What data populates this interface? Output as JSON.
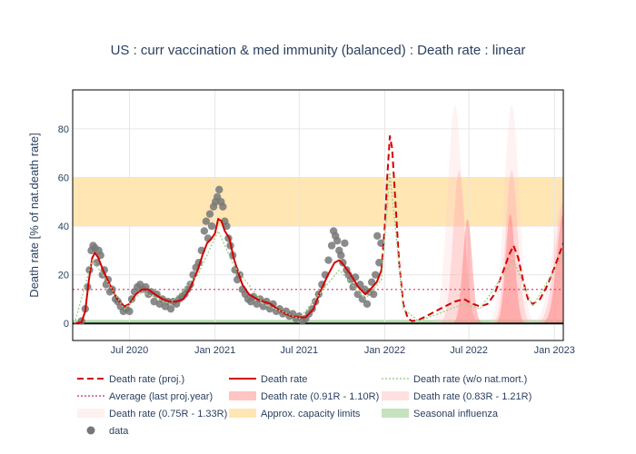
{
  "chart_data": {
    "type": "line",
    "title": "US : curr vaccination & med immunity (balanced) : Death rate : linear",
    "ylabel": "Death rate [% of nat.death rate]",
    "xlabel": "",
    "xlim": [
      "2020-03-01",
      "2023-01-20"
    ],
    "ylim": [
      -7,
      96
    ],
    "x_ticks": [
      {
        "date": "2020-07-01",
        "label": "Jul 2020"
      },
      {
        "date": "2021-01-01",
        "label": "Jan 2021"
      },
      {
        "date": "2021-07-01",
        "label": "Jul 2021"
      },
      {
        "date": "2022-01-01",
        "label": "Jan 2022"
      },
      {
        "date": "2022-07-01",
        "label": "Jul 2022"
      },
      {
        "date": "2023-01-01",
        "label": "Jan 2023"
      }
    ],
    "y_ticks": [
      0,
      20,
      40,
      60,
      80
    ],
    "grid": true,
    "legend_position": "bottom",
    "bands": [
      {
        "name": "Approx. capacity limits",
        "y0": 40,
        "y1": 60,
        "color": "#ffe6b3"
      },
      {
        "name": "Seasonal influenza",
        "y0": 0,
        "y1": 1.5,
        "color": "#b7dcb0"
      }
    ],
    "average_line": {
      "name": "Average (last proj.year)",
      "y": 14,
      "color": "#e0457b"
    },
    "series": [
      {
        "name": "Death rate",
        "color": "#d40000",
        "points": [
          [
            "2020-03-05",
            0
          ],
          [
            "2020-03-20",
            0.5
          ],
          [
            "2020-03-28",
            5
          ],
          [
            "2020-04-05",
            18
          ],
          [
            "2020-04-12",
            27
          ],
          [
            "2020-04-18",
            29
          ],
          [
            "2020-04-25",
            27
          ],
          [
            "2020-05-05",
            22
          ],
          [
            "2020-05-20",
            16
          ],
          [
            "2020-06-05",
            10
          ],
          [
            "2020-06-20",
            7
          ],
          [
            "2020-07-01",
            8
          ],
          [
            "2020-07-15",
            12
          ],
          [
            "2020-07-28",
            14
          ],
          [
            "2020-08-10",
            14
          ],
          [
            "2020-08-25",
            12
          ],
          [
            "2020-09-10",
            10
          ],
          [
            "2020-09-25",
            9
          ],
          [
            "2020-10-10",
            9
          ],
          [
            "2020-10-25",
            10
          ],
          [
            "2020-11-10",
            15
          ],
          [
            "2020-11-25",
            22
          ],
          [
            "2020-12-05",
            28
          ],
          [
            "2020-12-15",
            33
          ],
          [
            "2020-12-25",
            35
          ],
          [
            "2021-01-01",
            37
          ],
          [
            "2021-01-08",
            43
          ],
          [
            "2021-01-15",
            42
          ],
          [
            "2021-01-22",
            38
          ],
          [
            "2021-02-01",
            35
          ],
          [
            "2021-02-10",
            27
          ],
          [
            "2021-02-20",
            21
          ],
          [
            "2021-03-01",
            16
          ],
          [
            "2021-03-15",
            12
          ],
          [
            "2021-04-01",
            10
          ],
          [
            "2021-04-15",
            9
          ],
          [
            "2021-05-01",
            8
          ],
          [
            "2021-05-15",
            6
          ],
          [
            "2021-06-01",
            4
          ],
          [
            "2021-06-15",
            3
          ],
          [
            "2021-07-01",
            2.5
          ],
          [
            "2021-07-15",
            2.5
          ],
          [
            "2021-08-01",
            6
          ],
          [
            "2021-08-15",
            13
          ],
          [
            "2021-09-01",
            20
          ],
          [
            "2021-09-15",
            25
          ],
          [
            "2021-09-25",
            26
          ],
          [
            "2021-10-05",
            24
          ],
          [
            "2021-10-20",
            20
          ],
          [
            "2021-11-05",
            15
          ],
          [
            "2021-11-20",
            12
          ],
          [
            "2021-12-01",
            14
          ],
          [
            "2021-12-15",
            17
          ],
          [
            "2021-12-25",
            22
          ]
        ]
      },
      {
        "name": "Death rate (proj.)",
        "color": "#d40000",
        "dash": true,
        "points": [
          [
            "2021-12-25",
            22
          ],
          [
            "2022-01-01",
            40
          ],
          [
            "2022-01-07",
            62
          ],
          [
            "2022-01-12",
            77
          ],
          [
            "2022-01-17",
            72
          ],
          [
            "2022-01-24",
            50
          ],
          [
            "2022-02-01",
            25
          ],
          [
            "2022-02-10",
            8
          ],
          [
            "2022-02-20",
            2
          ],
          [
            "2022-03-01",
            1
          ],
          [
            "2022-03-15",
            1.5
          ],
          [
            "2022-04-01",
            3
          ],
          [
            "2022-04-20",
            5
          ],
          [
            "2022-05-10",
            7
          ],
          [
            "2022-06-01",
            9
          ],
          [
            "2022-06-20",
            10
          ],
          [
            "2022-07-10",
            8
          ],
          [
            "2022-07-25",
            7
          ],
          [
            "2022-08-10",
            8
          ],
          [
            "2022-08-25",
            12
          ],
          [
            "2022-09-10",
            20
          ],
          [
            "2022-09-25",
            28
          ],
          [
            "2022-10-05",
            32
          ],
          [
            "2022-10-15",
            27
          ],
          [
            "2022-10-25",
            18
          ],
          [
            "2022-11-05",
            10
          ],
          [
            "2022-11-15",
            8
          ],
          [
            "2022-12-01",
            10
          ],
          [
            "2022-12-15",
            15
          ],
          [
            "2023-01-01",
            23
          ],
          [
            "2023-01-20",
            33
          ]
        ]
      },
      {
        "name": "Death rate (w/o nat.mort.)",
        "color": "#9fd18b",
        "dash": true,
        "points": [
          [
            "2020-03-05",
            0
          ],
          [
            "2020-04-12",
            26
          ],
          [
            "2020-05-05",
            20
          ],
          [
            "2020-06-20",
            6
          ],
          [
            "2020-07-28",
            13
          ],
          [
            "2020-09-25",
            8
          ],
          [
            "2020-11-25",
            20
          ],
          [
            "2021-01-08",
            38
          ],
          [
            "2021-02-10",
            24
          ],
          [
            "2021-04-15",
            8
          ],
          [
            "2021-07-01",
            2
          ],
          [
            "2021-09-25",
            22
          ],
          [
            "2021-11-20",
            10
          ],
          [
            "2021-12-25",
            18
          ],
          [
            "2022-01-12",
            62
          ],
          [
            "2022-02-10",
            6
          ],
          [
            "2022-03-15",
            1
          ],
          [
            "2022-06-20",
            8
          ],
          [
            "2022-07-25",
            6
          ],
          [
            "2022-10-05",
            26
          ],
          [
            "2022-11-15",
            7
          ],
          [
            "2023-01-20",
            28
          ]
        ]
      }
    ],
    "uncertainty_bands": [
      {
        "name": "Death rate (0.75R - 1.33R)",
        "color": "rgba(255,205,205,0.25)",
        "peaks": [
          {
            "center": "2022-06-01",
            "height": 90,
            "halfwidth": 22
          },
          {
            "center": "2022-10-01",
            "height": 90,
            "halfwidth": 22
          },
          {
            "center": "2023-01-20",
            "height": 55,
            "halfwidth": 30
          }
        ]
      },
      {
        "name": "Death rate (0.83R - 1.21R)",
        "color": "rgba(255,170,170,0.35)",
        "peaks": [
          {
            "center": "2022-06-10",
            "height": 63,
            "halfwidth": 18
          },
          {
            "center": "2022-10-01",
            "height": 63,
            "halfwidth": 18
          },
          {
            "center": "2023-01-20",
            "height": 50,
            "halfwidth": 25
          }
        ]
      },
      {
        "name": "Death rate (0.91R - 1.10R)",
        "color": "rgba(255,120,120,0.45)",
        "peaks": [
          {
            "center": "2022-06-28",
            "height": 43,
            "halfwidth": 14
          },
          {
            "center": "2022-09-28",
            "height": 45,
            "halfwidth": 14
          },
          {
            "center": "2023-01-20",
            "height": 45,
            "halfwidth": 20
          }
        ]
      }
    ],
    "scatter": {
      "name": "data",
      "color": "#777777",
      "points": [
        [
          "2020-03-20",
          1
        ],
        [
          "2020-03-28",
          6
        ],
        [
          "2020-04-02",
          15
        ],
        [
          "2020-04-06",
          22
        ],
        [
          "2020-04-10",
          30
        ],
        [
          "2020-04-14",
          32
        ],
        [
          "2020-04-18",
          31
        ],
        [
          "2020-04-22",
          25
        ],
        [
          "2020-04-26",
          30
        ],
        [
          "2020-04-30",
          28
        ],
        [
          "2020-05-04",
          20
        ],
        [
          "2020-05-08",
          22
        ],
        [
          "2020-05-12",
          16
        ],
        [
          "2020-05-16",
          18
        ],
        [
          "2020-05-20",
          13
        ],
        [
          "2020-05-25",
          14
        ],
        [
          "2020-06-01",
          10
        ],
        [
          "2020-06-06",
          9
        ],
        [
          "2020-06-12",
          7
        ],
        [
          "2020-06-18",
          5
        ],
        [
          "2020-06-24",
          6
        ],
        [
          "2020-07-01",
          5
        ],
        [
          "2020-07-06",
          10
        ],
        [
          "2020-07-12",
          13
        ],
        [
          "2020-07-18",
          15
        ],
        [
          "2020-07-24",
          16
        ],
        [
          "2020-07-30",
          14
        ],
        [
          "2020-08-05",
          15
        ],
        [
          "2020-08-11",
          12
        ],
        [
          "2020-08-17",
          13
        ],
        [
          "2020-08-23",
          9
        ],
        [
          "2020-08-29",
          12
        ],
        [
          "2020-09-04",
          8
        ],
        [
          "2020-09-10",
          10
        ],
        [
          "2020-09-16",
          7
        ],
        [
          "2020-09-22",
          9
        ],
        [
          "2020-09-28",
          6
        ],
        [
          "2020-10-04",
          9
        ],
        [
          "2020-10-10",
          8
        ],
        [
          "2020-10-16",
          10
        ],
        [
          "2020-10-22",
          11
        ],
        [
          "2020-10-28",
          12
        ],
        [
          "2020-11-03",
          14
        ],
        [
          "2020-11-09",
          16
        ],
        [
          "2020-11-15",
          20
        ],
        [
          "2020-11-21",
          23
        ],
        [
          "2020-11-27",
          25
        ],
        [
          "2020-12-03",
          30
        ],
        [
          "2020-12-09",
          38
        ],
        [
          "2020-12-13",
          42
        ],
        [
          "2020-12-17",
          35
        ],
        [
          "2020-12-21",
          45
        ],
        [
          "2020-12-25",
          40
        ],
        [
          "2020-12-29",
          48
        ],
        [
          "2021-01-02",
          50
        ],
        [
          "2021-01-06",
          52
        ],
        [
          "2021-01-10",
          55
        ],
        [
          "2021-01-14",
          50
        ],
        [
          "2021-01-18",
          48
        ],
        [
          "2021-01-22",
          42
        ],
        [
          "2021-01-26",
          40
        ],
        [
          "2021-01-30",
          35
        ],
        [
          "2021-02-03",
          32
        ],
        [
          "2021-02-08",
          28
        ],
        [
          "2021-02-13",
          22
        ],
        [
          "2021-02-18",
          18
        ],
        [
          "2021-02-23",
          20
        ],
        [
          "2021-03-01",
          14
        ],
        [
          "2021-03-07",
          12
        ],
        [
          "2021-03-13",
          10
        ],
        [
          "2021-03-19",
          9
        ],
        [
          "2021-03-25",
          11
        ],
        [
          "2021-04-01",
          8
        ],
        [
          "2021-04-08",
          10
        ],
        [
          "2021-04-15",
          7
        ],
        [
          "2021-04-22",
          9
        ],
        [
          "2021-04-29",
          6
        ],
        [
          "2021-05-06",
          8
        ],
        [
          "2021-05-13",
          5
        ],
        [
          "2021-05-20",
          6
        ],
        [
          "2021-05-27",
          4
        ],
        [
          "2021-06-03",
          5
        ],
        [
          "2021-06-10",
          3
        ],
        [
          "2021-06-17",
          4
        ],
        [
          "2021-06-24",
          2
        ],
        [
          "2021-07-01",
          3
        ],
        [
          "2021-07-08",
          1
        ],
        [
          "2021-07-15",
          2
        ],
        [
          "2021-07-22",
          4
        ],
        [
          "2021-07-29",
          6
        ],
        [
          "2021-08-05",
          9
        ],
        [
          "2021-08-12",
          12
        ],
        [
          "2021-08-19",
          16
        ],
        [
          "2021-08-26",
          20
        ],
        [
          "2021-09-02",
          26
        ],
        [
          "2021-09-09",
          32
        ],
        [
          "2021-09-13",
          38
        ],
        [
          "2021-09-17",
          36
        ],
        [
          "2021-09-21",
          34
        ],
        [
          "2021-09-25",
          30
        ],
        [
          "2021-09-29",
          28
        ],
        [
          "2021-10-03",
          25
        ],
        [
          "2021-10-07",
          33
        ],
        [
          "2021-10-11",
          22
        ],
        [
          "2021-10-15",
          20
        ],
        [
          "2021-10-20",
          18
        ],
        [
          "2021-10-25",
          15
        ],
        [
          "2021-10-30",
          19
        ],
        [
          "2021-11-04",
          12
        ],
        [
          "2021-11-09",
          16
        ],
        [
          "2021-11-14",
          10
        ],
        [
          "2021-11-19",
          14
        ],
        [
          "2021-11-24",
          8
        ],
        [
          "2021-11-29",
          13
        ],
        [
          "2021-12-04",
          17
        ],
        [
          "2021-12-08",
          12
        ],
        [
          "2021-12-12",
          20
        ],
        [
          "2021-12-16",
          36
        ],
        [
          "2021-12-20",
          25
        ],
        [
          "2021-12-24",
          33
        ]
      ]
    },
    "legend": [
      {
        "label": "Death rate (proj.)",
        "kind": "line-dash",
        "color": "#d40000"
      },
      {
        "label": "Death rate",
        "kind": "line",
        "color": "#d40000"
      },
      {
        "label": "Death rate (w/o nat.mort.)",
        "kind": "line-dot",
        "color": "#9fd18b"
      },
      {
        "label": "Average (last proj.year)",
        "kind": "line-dot",
        "color": "#e0457b"
      },
      {
        "label": "Death rate (0.91R - 1.10R)",
        "kind": "area",
        "color": "#ffc4c4"
      },
      {
        "label": "Death rate (0.83R - 1.21R)",
        "kind": "area",
        "color": "#ffdfdf"
      },
      {
        "label": "Death rate (0.75R - 1.33R)",
        "kind": "area",
        "color": "#fff0f0"
      },
      {
        "label": "Approx. capacity limits",
        "kind": "area",
        "color": "#ffe6b3"
      },
      {
        "label": "Seasonal influenza",
        "kind": "area",
        "color": "#c6e3bf"
      },
      {
        "label": "data",
        "kind": "marker",
        "color": "#777777"
      }
    ]
  }
}
